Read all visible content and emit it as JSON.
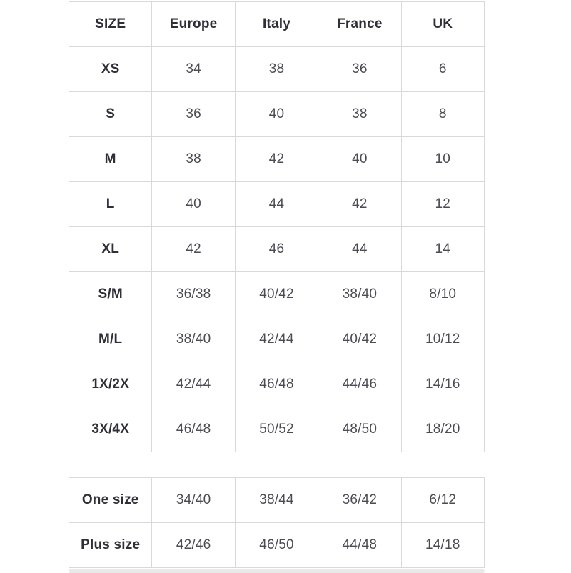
{
  "colors": {
    "border": "#d9d9d9",
    "header_text": "#2f2f38",
    "value_text": "#4b4b53",
    "scrollbar": "#e9e9e9",
    "background": "#ffffff"
  },
  "chart_data": {
    "type": "table",
    "title": "",
    "headers": [
      "SIZE",
      "Europe",
      "Italy",
      "France",
      "UK"
    ]
  },
  "size_chart": {
    "headers": [
      "SIZE",
      "Europe",
      "Italy",
      "France",
      "UK"
    ],
    "rows": [
      {
        "label": "XS",
        "values": [
          "34",
          "38",
          "36",
          "6"
        ]
      },
      {
        "label": "S",
        "values": [
          "36",
          "40",
          "38",
          "8"
        ]
      },
      {
        "label": "M",
        "values": [
          "38",
          "42",
          "40",
          "10"
        ]
      },
      {
        "label": "L",
        "values": [
          "40",
          "44",
          "42",
          "12"
        ]
      },
      {
        "label": "XL",
        "values": [
          "42",
          "46",
          "44",
          "14"
        ]
      },
      {
        "label": "S/M",
        "values": [
          "36/38",
          "40/42",
          "38/40",
          "8/10"
        ]
      },
      {
        "label": "M/L",
        "values": [
          "38/40",
          "42/44",
          "40/42",
          "10/12"
        ]
      },
      {
        "label": "1X/2X",
        "values": [
          "42/44",
          "46/48",
          "44/46",
          "14/16"
        ]
      },
      {
        "label": "3X/4X",
        "values": [
          "46/48",
          "50/52",
          "48/50",
          "18/20"
        ]
      }
    ]
  },
  "special_sizes": {
    "rows": [
      {
        "label": "One size",
        "values": [
          "34/40",
          "38/44",
          "36/42",
          "6/12"
        ]
      },
      {
        "label": "Plus size",
        "values": [
          "42/46",
          "46/50",
          "44/48",
          "14/18"
        ]
      }
    ]
  }
}
